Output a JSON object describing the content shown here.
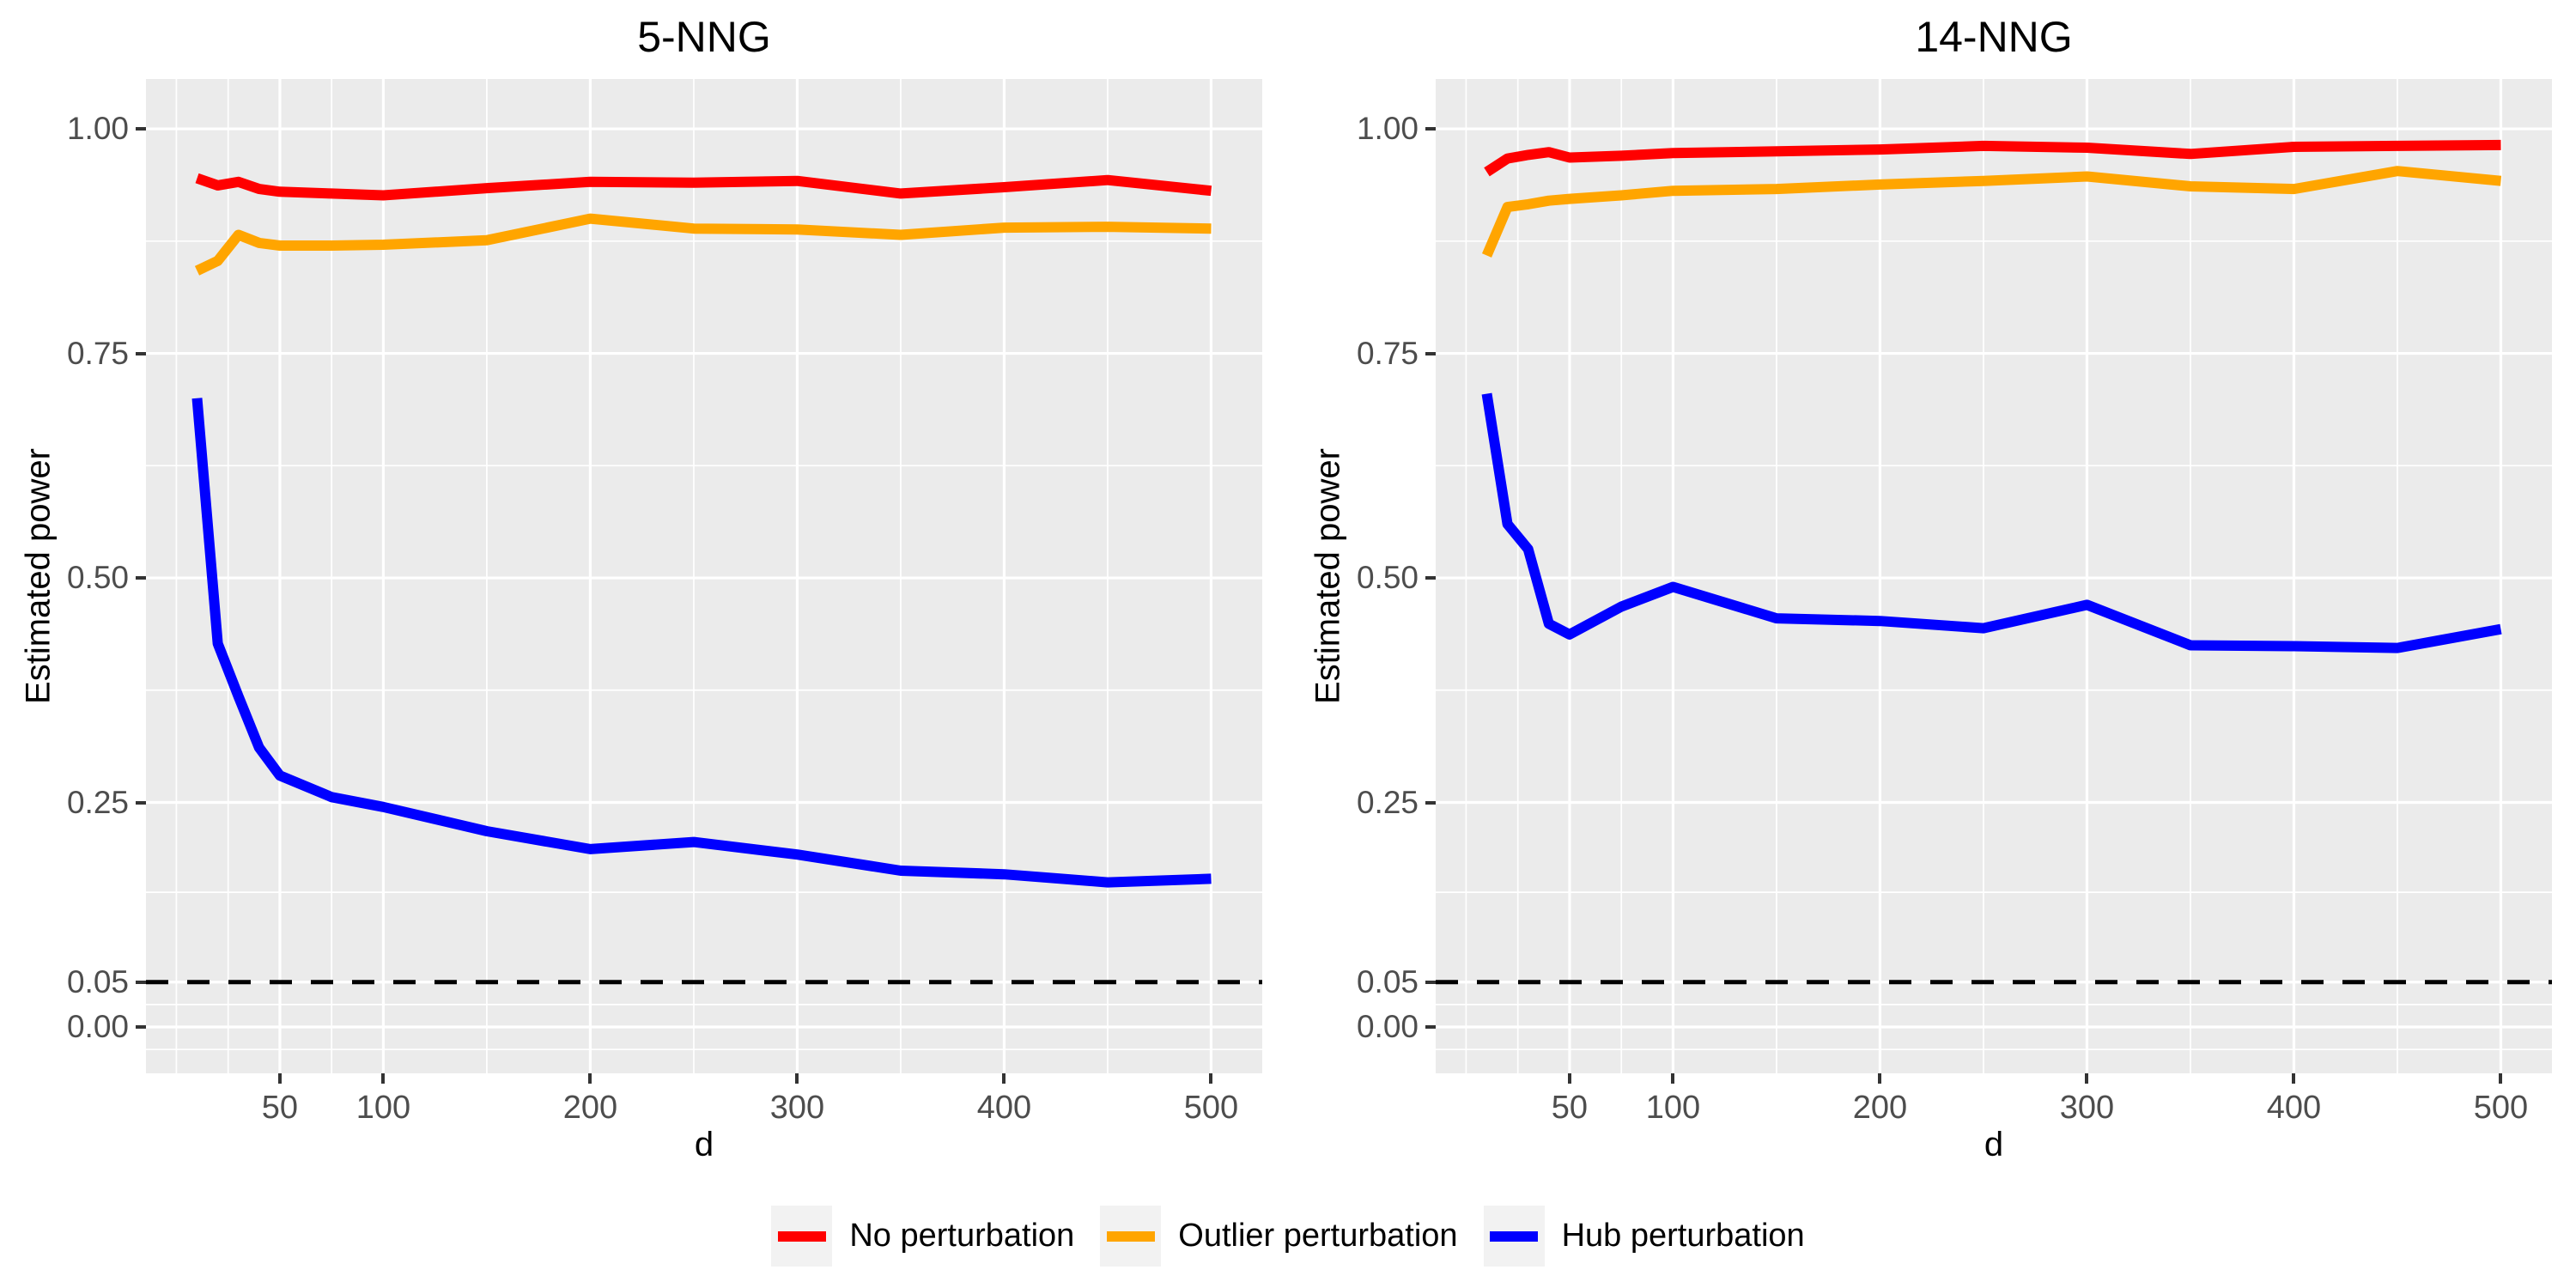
{
  "legend": {
    "items": [
      {
        "label": "No perturbation",
        "color": "#FF0000"
      },
      {
        "label": "Outlier perturbation",
        "color": "#FFA500"
      },
      {
        "label": "Hub perturbation",
        "color": "#0000FF"
      }
    ]
  },
  "style": {
    "panel_background": "#EBEBEB",
    "grid_color": "#FFFFFF",
    "tick_color": "#333333",
    "tick_text_color": "#4D4D4D",
    "reference_line_color": "#000000"
  },
  "chart_data": [
    {
      "type": "line",
      "title": "5-NNG",
      "xlabel": "d",
      "ylabel": "Estimated power",
      "x": [
        10,
        20,
        30,
        40,
        50,
        75,
        100,
        150,
        200,
        250,
        300,
        350,
        400,
        450,
        500
      ],
      "series": [
        {
          "name": "No perturbation",
          "color": "#FF0000",
          "values": [
            0.945,
            0.937,
            0.941,
            0.933,
            0.93,
            0.928,
            0.926,
            0.934,
            0.941,
            0.94,
            0.942,
            0.928,
            0.935,
            0.943,
            0.931
          ]
        },
        {
          "name": "Outlier perturbation",
          "color": "#FFA500",
          "values": [
            0.842,
            0.853,
            0.882,
            0.873,
            0.87,
            0.87,
            0.871,
            0.876,
            0.9,
            0.889,
            0.888,
            0.882,
            0.89,
            0.891,
            0.889
          ]
        },
        {
          "name": "Hub perturbation",
          "color": "#0000FF",
          "values": [
            0.7,
            0.427,
            0.368,
            0.311,
            0.28,
            0.256,
            0.245,
            0.218,
            0.198,
            0.206,
            0.192,
            0.174,
            0.17,
            0.161,
            0.165
          ]
        }
      ],
      "hline": {
        "value": 0.05,
        "style": "dashed",
        "color": "#000000"
      },
      "x_tick_labels": [
        "50",
        "100",
        "200",
        "300",
        "400",
        "500"
      ],
      "x_tick_values": [
        50,
        100,
        200,
        300,
        400,
        500
      ],
      "x_minor_values": [
        0,
        25,
        75,
        150,
        250,
        350,
        450
      ],
      "y_tick_labels": [
        "1.00",
        "0.75",
        "0.50",
        "0.25",
        "0.05",
        "0.00"
      ],
      "y_tick_values": [
        1.0,
        0.75,
        0.5,
        0.25,
        0.05,
        0.0
      ],
      "y_major_values": [
        0.0,
        0.05,
        0.25,
        0.5,
        0.75,
        1.0
      ],
      "y_minor_values": [
        -0.025,
        0.025,
        0.15,
        0.375,
        0.625,
        0.875
      ],
      "xlim": [
        -14.7,
        524.7
      ],
      "ylim": [
        -0.0516,
        1.0555
      ],
      "grid": true,
      "legend_position": "bottom"
    },
    {
      "type": "line",
      "title": "14-NNG",
      "xlabel": "d",
      "ylabel": "Estimated power",
      "x": [
        10,
        20,
        30,
        40,
        50,
        75,
        100,
        150,
        200,
        250,
        300,
        350,
        400,
        450,
        500
      ],
      "series": [
        {
          "name": "No perturbation",
          "color": "#FF0000",
          "values": [
            0.952,
            0.967,
            0.971,
            0.974,
            0.968,
            0.97,
            0.973,
            0.975,
            0.977,
            0.981,
            0.979,
            0.972,
            0.98,
            0.981,
            0.982
          ]
        },
        {
          "name": "Outlier perturbation",
          "color": "#FFA500",
          "values": [
            0.859,
            0.913,
            0.916,
            0.92,
            0.922,
            0.926,
            0.931,
            0.933,
            0.938,
            0.942,
            0.947,
            0.936,
            0.933,
            0.953,
            0.942
          ]
        },
        {
          "name": "Hub perturbation",
          "color": "#0000FF",
          "values": [
            0.705,
            0.56,
            0.532,
            0.449,
            0.437,
            0.468,
            0.49,
            0.455,
            0.452,
            0.444,
            0.47,
            0.425,
            0.424,
            0.422,
            0.443
          ]
        }
      ],
      "hline": {
        "value": 0.05,
        "style": "dashed",
        "color": "#000000"
      },
      "x_tick_labels": [
        "50",
        "100",
        "200",
        "300",
        "400",
        "500"
      ],
      "x_tick_values": [
        50,
        100,
        200,
        300,
        400,
        500
      ],
      "x_minor_values": [
        0,
        25,
        75,
        150,
        250,
        350,
        450
      ],
      "y_tick_labels": [
        "1.00",
        "0.75",
        "0.50",
        "0.25",
        "0.05",
        "0.00"
      ],
      "y_tick_values": [
        1.0,
        0.75,
        0.5,
        0.25,
        0.05,
        0.0
      ],
      "y_major_values": [
        0.0,
        0.05,
        0.25,
        0.5,
        0.75,
        1.0
      ],
      "y_minor_values": [
        -0.025,
        0.025,
        0.15,
        0.375,
        0.625,
        0.875
      ],
      "xlim": [
        -14.7,
        524.7
      ],
      "ylim": [
        -0.0516,
        1.0555
      ],
      "grid": true,
      "legend_position": "bottom"
    }
  ]
}
